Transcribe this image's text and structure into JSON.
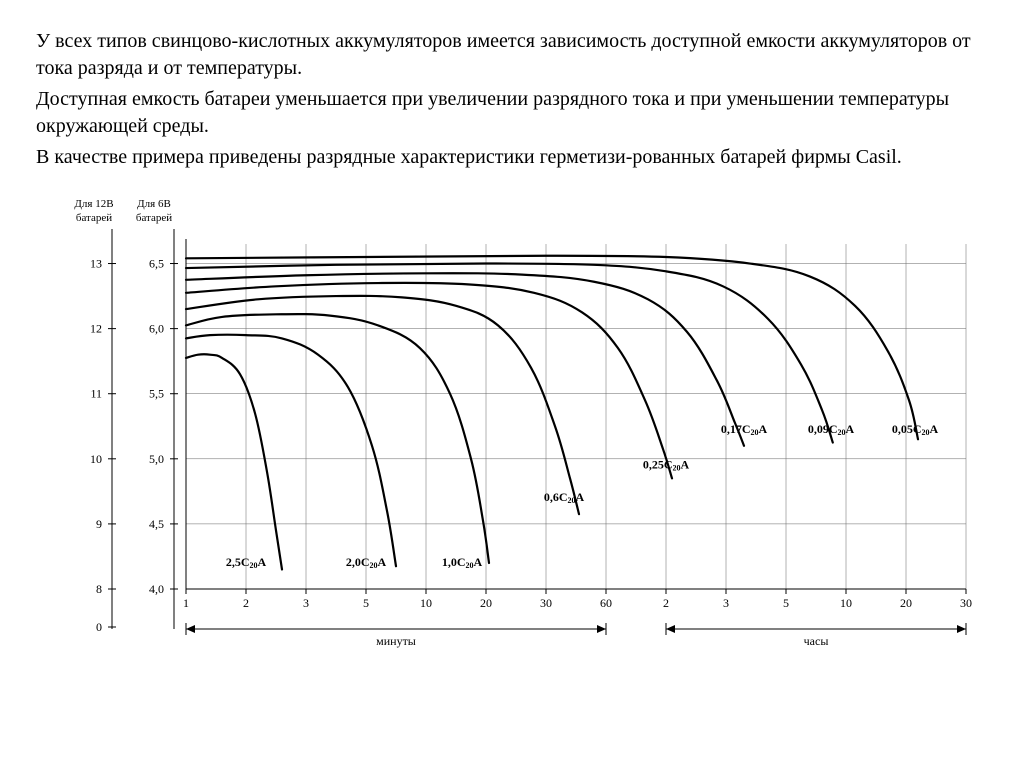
{
  "text": {
    "p1": "У всех типов свинцово-кислотных аккумуляторов имеется зависимость доступной емкости аккумуляторов от тока разряда и от температуры.",
    "p2": "Доступная емкость батареи уменьшается при увеличении разрядного тока и при уменьшении температуры окружающей среды.",
    "p3": "В качестве примера приведены разрядные характеристики герметизи-рованных батарей фирмы Casil."
  },
  "axis_headers": {
    "left1_a": "Для 12В",
    "left1_b": "батарей",
    "left2_a": "Для 6В",
    "left2_b": "батарей"
  },
  "y12_ticks": [
    {
      "label": "13",
      "value": 13
    },
    {
      "label": "12",
      "value": 12
    },
    {
      "label": "11",
      "value": 11
    },
    {
      "label": "10",
      "value": 10
    },
    {
      "label": "9",
      "value": 9
    },
    {
      "label": "8",
      "value": 8
    },
    {
      "label": "0",
      "value": 0
    }
  ],
  "y6_ticks": [
    {
      "label": "6,5",
      "value": 6.5
    },
    {
      "label": "6,0",
      "value": 6.0
    },
    {
      "label": "5,5",
      "value": 5.5
    },
    {
      "label": "5,0",
      "value": 5.0
    },
    {
      "label": "4,5",
      "value": 4.5
    },
    {
      "label": "4,0",
      "value": 4.0
    }
  ],
  "x_ticks": [
    {
      "label": "1",
      "pos": 1
    },
    {
      "label": "2",
      "pos": 2
    },
    {
      "label": "3",
      "pos": 3
    },
    {
      "label": "5",
      "pos": 4
    },
    {
      "label": "10",
      "pos": 5
    },
    {
      "label": "20",
      "pos": 6
    },
    {
      "label": "30",
      "pos": 7
    },
    {
      "label": "60",
      "pos": 8
    },
    {
      "label": "2",
      "pos": 9
    },
    {
      "label": "3",
      "pos": 10
    },
    {
      "label": "5",
      "pos": 11
    },
    {
      "label": "10",
      "pos": 12
    },
    {
      "label": "20",
      "pos": 13
    },
    {
      "label": "30",
      "pos": 14
    }
  ],
  "x_sections": {
    "minutes": {
      "label": "минуты",
      "from_pos": 1,
      "to_pos": 8
    },
    "hours": {
      "label": "часы",
      "from_pos": 9,
      "to_pos": 14
    }
  },
  "chart": {
    "type": "line",
    "y_domain": [
      8.0,
      13.3
    ],
    "x_domain": [
      1,
      14
    ],
    "line_color": "#000000",
    "line_width": 2.2,
    "grid_color": "#666666",
    "grid_width": 0.5,
    "background_color": "#ffffff",
    "axis_font_size": 12,
    "header_font_size": 11,
    "label_font_size": 12
  },
  "curves": [
    {
      "label_main": "2,5C",
      "label_sub": "20",
      "label_suffix": "A",
      "label_at": {
        "x": 2.0,
        "y": 8.35
      },
      "points": [
        {
          "x": 1.0,
          "y": 11.55
        },
        {
          "x": 1.2,
          "y": 11.6
        },
        {
          "x": 1.4,
          "y": 11.6
        },
        {
          "x": 1.6,
          "y": 11.55
        },
        {
          "x": 1.9,
          "y": 11.3
        },
        {
          "x": 2.15,
          "y": 10.7
        },
        {
          "x": 2.35,
          "y": 9.8
        },
        {
          "x": 2.5,
          "y": 8.9
        },
        {
          "x": 2.6,
          "y": 8.3
        }
      ]
    },
    {
      "label_main": "2,0C",
      "label_sub": "20",
      "label_suffix": "A",
      "label_at": {
        "x": 4.0,
        "y": 8.35
      },
      "points": [
        {
          "x": 1.0,
          "y": 11.85
        },
        {
          "x": 1.4,
          "y": 11.9
        },
        {
          "x": 2.0,
          "y": 11.9
        },
        {
          "x": 2.6,
          "y": 11.85
        },
        {
          "x": 3.2,
          "y": 11.6
        },
        {
          "x": 3.7,
          "y": 11.1
        },
        {
          "x": 4.1,
          "y": 10.2
        },
        {
          "x": 4.35,
          "y": 9.2
        },
        {
          "x": 4.5,
          "y": 8.35
        }
      ]
    },
    {
      "label_main": "1,0C",
      "label_sub": "20",
      "label_suffix": "A",
      "label_at": {
        "x": 5.6,
        "y": 8.35
      },
      "points": [
        {
          "x": 1.0,
          "y": 12.05
        },
        {
          "x": 1.6,
          "y": 12.18
        },
        {
          "x": 2.5,
          "y": 12.22
        },
        {
          "x": 3.4,
          "y": 12.2
        },
        {
          "x": 4.2,
          "y": 12.05
        },
        {
          "x": 4.9,
          "y": 11.7
        },
        {
          "x": 5.4,
          "y": 11.0
        },
        {
          "x": 5.75,
          "y": 10.0
        },
        {
          "x": 5.95,
          "y": 9.05
        },
        {
          "x": 6.05,
          "y": 8.4
        }
      ]
    },
    {
      "label_main": "0,6C",
      "label_sub": "20",
      "label_suffix": "A",
      "label_at": {
        "x": 7.3,
        "y": 9.35
      },
      "points": [
        {
          "x": 1.0,
          "y": 12.3
        },
        {
          "x": 2.2,
          "y": 12.45
        },
        {
          "x": 3.5,
          "y": 12.5
        },
        {
          "x": 4.6,
          "y": 12.48
        },
        {
          "x": 5.5,
          "y": 12.35
        },
        {
          "x": 6.2,
          "y": 12.05
        },
        {
          "x": 6.75,
          "y": 11.4
        },
        {
          "x": 7.15,
          "y": 10.5
        },
        {
          "x": 7.4,
          "y": 9.7
        },
        {
          "x": 7.55,
          "y": 9.15
        }
      ]
    },
    {
      "label_main": "0,25C",
      "label_sub": "20",
      "label_suffix": "A",
      "label_at": {
        "x": 9.0,
        "y": 9.85
      },
      "points": [
        {
          "x": 1.0,
          "y": 12.55
        },
        {
          "x": 2.5,
          "y": 12.65
        },
        {
          "x": 4.2,
          "y": 12.7
        },
        {
          "x": 5.7,
          "y": 12.68
        },
        {
          "x": 6.8,
          "y": 12.55
        },
        {
          "x": 7.6,
          "y": 12.25
        },
        {
          "x": 8.2,
          "y": 11.7
        },
        {
          "x": 8.65,
          "y": 10.9
        },
        {
          "x": 8.95,
          "y": 10.15
        },
        {
          "x": 9.1,
          "y": 9.7
        }
      ]
    },
    {
      "label_main": "0,17C",
      "label_sub": "20",
      "label_suffix": "A",
      "label_at": {
        "x": 10.3,
        "y": 10.4
      },
      "points": [
        {
          "x": 1.0,
          "y": 12.75
        },
        {
          "x": 3.0,
          "y": 12.82
        },
        {
          "x": 5.0,
          "y": 12.85
        },
        {
          "x": 6.6,
          "y": 12.83
        },
        {
          "x": 7.8,
          "y": 12.72
        },
        {
          "x": 8.7,
          "y": 12.45
        },
        {
          "x": 9.35,
          "y": 11.95
        },
        {
          "x": 9.85,
          "y": 11.2
        },
        {
          "x": 10.15,
          "y": 10.55
        },
        {
          "x": 10.3,
          "y": 10.2
        }
      ]
    },
    {
      "label_main": "0,09C",
      "label_sub": "20",
      "label_suffix": "A",
      "label_at": {
        "x": 11.75,
        "y": 10.4
      },
      "points": [
        {
          "x": 1.0,
          "y": 12.93
        },
        {
          "x": 3.5,
          "y": 12.98
        },
        {
          "x": 6.0,
          "y": 13.0
        },
        {
          "x": 7.8,
          "y": 12.98
        },
        {
          "x": 9.0,
          "y": 12.88
        },
        {
          "x": 9.95,
          "y": 12.65
        },
        {
          "x": 10.7,
          "y": 12.15
        },
        {
          "x": 11.25,
          "y": 11.45
        },
        {
          "x": 11.6,
          "y": 10.75
        },
        {
          "x": 11.78,
          "y": 10.25
        }
      ]
    },
    {
      "label_main": "0,05C",
      "label_sub": "20",
      "label_suffix": "A",
      "label_at": {
        "x": 13.15,
        "y": 10.4
      },
      "points": [
        {
          "x": 1.0,
          "y": 13.08
        },
        {
          "x": 4.0,
          "y": 13.1
        },
        {
          "x": 7.0,
          "y": 13.12
        },
        {
          "x": 9.0,
          "y": 13.1
        },
        {
          "x": 10.4,
          "y": 13.0
        },
        {
          "x": 11.4,
          "y": 12.8
        },
        {
          "x": 12.15,
          "y": 12.35
        },
        {
          "x": 12.7,
          "y": 11.65
        },
        {
          "x": 13.05,
          "y": 10.9
        },
        {
          "x": 13.2,
          "y": 10.3
        }
      ]
    }
  ]
}
